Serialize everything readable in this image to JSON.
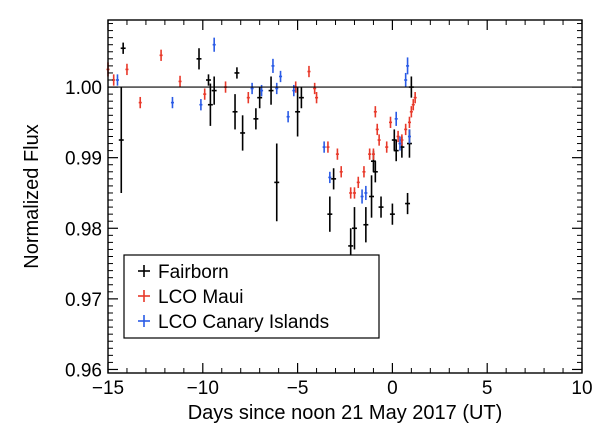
{
  "chart_data": {
    "type": "scatter",
    "title": "",
    "xlabel": "Days since noon 21 May 2017 (UT)",
    "ylabel": "Normalized Flux",
    "xlim": [
      -15,
      10
    ],
    "ylim": [
      0.9595,
      1.0095
    ],
    "x_ticks": [
      -15,
      -10,
      -5,
      0,
      5,
      10
    ],
    "y_ticks": [
      0.96,
      0.97,
      0.98,
      0.99,
      1.0
    ],
    "x_tick_labels": [
      "−15",
      "−10",
      "−5",
      "0",
      "5",
      "10"
    ],
    "y_tick_labels": [
      "0.96",
      "0.97",
      "0.98",
      "0.99",
      "1.00"
    ],
    "reference_line": 1.0,
    "legend": {
      "position": "bottom-left",
      "frame": true
    },
    "error_bars": true,
    "series": [
      {
        "name": "Fairborn",
        "color": "#000000",
        "points": [
          {
            "x": -14.2,
            "y": 1.0055,
            "xe": 0.13,
            "ye": 0.0008
          },
          {
            "x": -14.3,
            "y": 0.9925,
            "xe": 0.13,
            "ye": 0.0075
          },
          {
            "x": -10.2,
            "y": 1.004,
            "xe": 0.13,
            "ye": 0.0015
          },
          {
            "x": -9.7,
            "y": 1.001,
            "xe": 0.13,
            "ye": 0.0008
          },
          {
            "x": -9.4,
            "y": 0.9995,
            "xe": 0.13,
            "ye": 0.002
          },
          {
            "x": -9.6,
            "y": 0.9975,
            "xe": 0.13,
            "ye": 0.003
          },
          {
            "x": -8.2,
            "y": 1.002,
            "xe": 0.13,
            "ye": 0.0008
          },
          {
            "x": -8.3,
            "y": 0.9965,
            "xe": 0.13,
            "ye": 0.0025
          },
          {
            "x": -7.9,
            "y": 0.9935,
            "xe": 0.13,
            "ye": 0.0025
          },
          {
            "x": -7.2,
            "y": 0.9955,
            "xe": 0.13,
            "ye": 0.0015
          },
          {
            "x": -7.0,
            "y": 0.9985,
            "xe": 0.13,
            "ye": 0.0015
          },
          {
            "x": -6.4,
            "y": 0.9995,
            "xe": 0.13,
            "ye": 0.002
          },
          {
            "x": -6.1,
            "y": 0.9865,
            "xe": 0.13,
            "ye": 0.0055
          },
          {
            "x": -5.0,
            "y": 0.9965,
            "xe": 0.13,
            "ye": 0.0035
          },
          {
            "x": -4.8,
            "y": 0.9985,
            "xe": 0.13,
            "ye": 0.0015
          },
          {
            "x": -3.3,
            "y": 0.982,
            "xe": 0.13,
            "ye": 0.0025
          },
          {
            "x": -3.1,
            "y": 0.987,
            "xe": 0.13,
            "ye": 0.0015
          },
          {
            "x": -2.2,
            "y": 0.9775,
            "xe": 0.13,
            "ye": 0.0025
          },
          {
            "x": -2.0,
            "y": 0.98,
            "xe": 0.13,
            "ye": 0.003
          },
          {
            "x": -1.4,
            "y": 0.9805,
            "xe": 0.13,
            "ye": 0.0025
          },
          {
            "x": -1.1,
            "y": 0.9845,
            "xe": 0.13,
            "ye": 0.003
          },
          {
            "x": -1.0,
            "y": 0.9895,
            "xe": 0.13,
            "ye": 0.0015
          },
          {
            "x": -0.9,
            "y": 0.988,
            "xe": 0.13,
            "ye": 0.0015
          },
          {
            "x": -0.6,
            "y": 0.983,
            "xe": 0.13,
            "ye": 0.0015
          },
          {
            "x": 0.0,
            "y": 0.982,
            "xe": 0.13,
            "ye": 0.0015
          },
          {
            "x": 0.1,
            "y": 0.9925,
            "xe": 0.13,
            "ye": 0.0015
          },
          {
            "x": 0.2,
            "y": 0.991,
            "xe": 0.13,
            "ye": 0.0015
          },
          {
            "x": 0.5,
            "y": 0.9915,
            "xe": 0.13,
            "ye": 0.0015
          },
          {
            "x": 0.8,
            "y": 0.9835,
            "xe": 0.13,
            "ye": 0.0015
          },
          {
            "x": 0.9,
            "y": 0.992,
            "xe": 0.13,
            "ye": 0.002
          },
          {
            "x": 1.0,
            "y": 1.0,
            "xe": 0.13,
            "ye": 0.0015
          }
        ]
      },
      {
        "name": "LCO Maui",
        "color": "#e8392a",
        "points": [
          {
            "x": -15.0,
            "y": 1.0025,
            "xe": 0.08,
            "ye": 0.001
          },
          {
            "x": -14.7,
            "y": 1.001,
            "xe": 0.08,
            "ye": 0.0008
          },
          {
            "x": -14.0,
            "y": 1.0025,
            "xe": 0.08,
            "ye": 0.0008
          },
          {
            "x": -13.3,
            "y": 0.9978,
            "xe": 0.08,
            "ye": 0.0008
          },
          {
            "x": -12.2,
            "y": 1.0045,
            "xe": 0.08,
            "ye": 0.0008
          },
          {
            "x": -11.2,
            "y": 1.0008,
            "xe": 0.08,
            "ye": 0.0008
          },
          {
            "x": -9.9,
            "y": 0.999,
            "xe": 0.08,
            "ye": 0.0008
          },
          {
            "x": -8.8,
            "y": 1.0,
            "xe": 0.08,
            "ye": 0.0008
          },
          {
            "x": -7.6,
            "y": 0.9985,
            "xe": 0.08,
            "ye": 0.0008
          },
          {
            "x": -5.1,
            "y": 1.0,
            "xe": 0.08,
            "ye": 0.0008
          },
          {
            "x": -4.4,
            "y": 1.0022,
            "xe": 0.08,
            "ye": 0.0008
          },
          {
            "x": -4.1,
            "y": 0.9998,
            "xe": 0.08,
            "ye": 0.0008
          },
          {
            "x": -4.0,
            "y": 0.9985,
            "xe": 0.08,
            "ye": 0.0008
          },
          {
            "x": -3.4,
            "y": 0.9915,
            "xe": 0.08,
            "ye": 0.0008
          },
          {
            "x": -2.9,
            "y": 0.9905,
            "xe": 0.08,
            "ye": 0.0008
          },
          {
            "x": -2.7,
            "y": 0.988,
            "xe": 0.08,
            "ye": 0.0008
          },
          {
            "x": -2.2,
            "y": 0.985,
            "xe": 0.08,
            "ye": 0.0008
          },
          {
            "x": -2.0,
            "y": 0.985,
            "xe": 0.08,
            "ye": 0.0008
          },
          {
            "x": -1.8,
            "y": 0.9865,
            "xe": 0.08,
            "ye": 0.0008
          },
          {
            "x": -1.5,
            "y": 0.988,
            "xe": 0.08,
            "ye": 0.0008
          },
          {
            "x": -1.2,
            "y": 0.9905,
            "xe": 0.08,
            "ye": 0.0008
          },
          {
            "x": -1.0,
            "y": 0.9905,
            "xe": 0.08,
            "ye": 0.0008
          },
          {
            "x": -0.9,
            "y": 0.9965,
            "xe": 0.08,
            "ye": 0.0008
          },
          {
            "x": -0.8,
            "y": 0.994,
            "xe": 0.08,
            "ye": 0.0008
          },
          {
            "x": -0.7,
            "y": 0.9925,
            "xe": 0.08,
            "ye": 0.0008
          },
          {
            "x": -0.3,
            "y": 0.9915,
            "xe": 0.08,
            "ye": 0.0008
          },
          {
            "x": -0.1,
            "y": 0.995,
            "xe": 0.08,
            "ye": 0.0008
          },
          {
            "x": 0.3,
            "y": 0.993,
            "xe": 0.08,
            "ye": 0.0008
          },
          {
            "x": 0.5,
            "y": 0.9925,
            "xe": 0.08,
            "ye": 0.0008
          },
          {
            "x": 0.7,
            "y": 0.994,
            "xe": 0.08,
            "ye": 0.0008
          },
          {
            "x": 0.9,
            "y": 0.995,
            "xe": 0.08,
            "ye": 0.0008
          },
          {
            "x": 1.0,
            "y": 0.9965,
            "xe": 0.08,
            "ye": 0.0008
          },
          {
            "x": 1.1,
            "y": 0.9975,
            "xe": 0.08,
            "ye": 0.0008
          },
          {
            "x": 1.2,
            "y": 0.9985,
            "xe": 0.08,
            "ye": 0.0008
          }
        ]
      },
      {
        "name": "LCO Canary Islands",
        "color": "#2a5be6",
        "points": [
          {
            "x": -14.5,
            "y": 1.001,
            "xe": 0.08,
            "ye": 0.0008
          },
          {
            "x": -11.6,
            "y": 0.9978,
            "xe": 0.08,
            "ye": 0.0008
          },
          {
            "x": -10.1,
            "y": 0.9975,
            "xe": 0.08,
            "ye": 0.0008
          },
          {
            "x": -9.4,
            "y": 1.006,
            "xe": 0.08,
            "ye": 0.001
          },
          {
            "x": -7.4,
            "y": 0.9998,
            "xe": 0.08,
            "ye": 0.0008
          },
          {
            "x": -6.9,
            "y": 0.9995,
            "xe": 0.08,
            "ye": 0.0008
          },
          {
            "x": -6.3,
            "y": 1.003,
            "xe": 0.08,
            "ye": 0.001
          },
          {
            "x": -6.1,
            "y": 0.9998,
            "xe": 0.08,
            "ye": 0.0008
          },
          {
            "x": -5.9,
            "y": 1.0015,
            "xe": 0.08,
            "ye": 0.0008
          },
          {
            "x": -5.5,
            "y": 0.9958,
            "xe": 0.08,
            "ye": 0.0008
          },
          {
            "x": -5.2,
            "y": 0.9995,
            "xe": 0.08,
            "ye": 0.0008
          },
          {
            "x": -3.6,
            "y": 0.9915,
            "xe": 0.08,
            "ye": 0.0008
          },
          {
            "x": -3.3,
            "y": 0.9872,
            "xe": 0.08,
            "ye": 0.0008
          },
          {
            "x": -1.6,
            "y": 0.9845,
            "xe": 0.08,
            "ye": 0.001
          },
          {
            "x": -1.4,
            "y": 0.985,
            "xe": 0.08,
            "ye": 0.001
          },
          {
            "x": 0.2,
            "y": 0.9955,
            "xe": 0.08,
            "ye": 0.001
          },
          {
            "x": 0.4,
            "y": 0.992,
            "xe": 0.08,
            "ye": 0.001
          },
          {
            "x": 0.7,
            "y": 1.001,
            "xe": 0.08,
            "ye": 0.001
          },
          {
            "x": 0.8,
            "y": 1.003,
            "xe": 0.08,
            "ye": 0.0012
          },
          {
            "x": 0.9,
            "y": 0.993,
            "xe": 0.08,
            "ye": 0.001
          }
        ]
      }
    ]
  }
}
